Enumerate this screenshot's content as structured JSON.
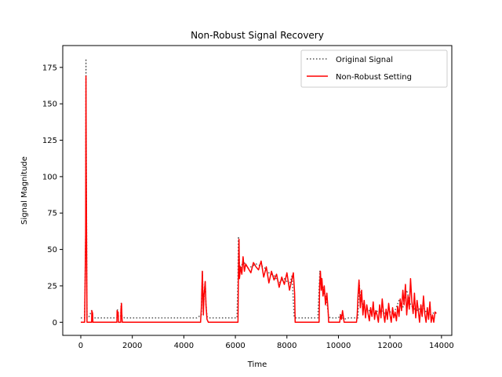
{
  "chart_data": {
    "type": "line",
    "title": "Non-Robust Signal Recovery",
    "xlabel": "Time",
    "ylabel": "Signal Magnitude",
    "xlim": [
      -700,
      14400
    ],
    "ylim": [
      -9,
      190
    ],
    "xticks": [
      0,
      2000,
      4000,
      6000,
      8000,
      10000,
      12000,
      14000
    ],
    "xtick_labels": [
      "0",
      "2000",
      "4000",
      "6000",
      "8000",
      "10000",
      "12000",
      "14000"
    ],
    "yticks": [
      0,
      25,
      50,
      75,
      100,
      125,
      150,
      175
    ],
    "ytick_labels": [
      "0",
      "25",
      "50",
      "75",
      "100",
      "125",
      "150",
      "175"
    ],
    "grid": false,
    "legend_position": "upper right",
    "series": [
      {
        "name": "Original Signal",
        "color": "#555555",
        "style": "dotted",
        "x": [
          0,
          150,
          190,
          200,
          210,
          240,
          290,
          300,
          420,
          450,
          480,
          1400,
          1420,
          1460,
          1550,
          1570,
          1600,
          1700,
          2500,
          3500,
          4500,
          4680,
          4720,
          4760,
          4800,
          4830,
          4860,
          4900,
          4960,
          5000,
          5100,
          5500,
          6000,
          6060,
          6100,
          6120,
          6160,
          6200,
          6300,
          6500,
          6800,
          7100,
          7300,
          7500,
          7700,
          7900,
          8100,
          8200,
          8280,
          8320,
          8400,
          8700,
          9000,
          9200,
          9280,
          9320,
          9380,
          9450,
          9550,
          9620,
          9680,
          9800,
          10000,
          10100,
          10200,
          10400,
          10600,
          10700,
          10760,
          10800,
          10850,
          10950,
          11050,
          11200,
          11400,
          11600,
          11800,
          12000,
          12200,
          12350,
          12500,
          12650,
          12800,
          12950,
          13100,
          13250,
          13400,
          13550,
          13650,
          13750,
          13800
        ],
        "y": [
          3,
          3,
          60,
          181,
          120,
          3,
          3,
          3,
          8,
          4,
          3,
          3,
          9,
          4,
          4,
          13,
          4,
          3,
          3,
          3,
          3,
          5,
          35,
          10,
          22,
          28,
          12,
          4,
          3,
          3,
          3,
          3,
          3,
          3,
          30,
          59,
          40,
          36,
          42,
          37,
          40,
          38,
          34,
          32,
          27,
          30,
          26,
          32,
          4,
          3,
          3,
          3,
          3,
          3,
          35,
          30,
          25,
          20,
          14,
          4,
          3,
          3,
          3,
          6,
          2,
          3,
          3,
          3,
          3,
          28,
          18,
          12,
          10,
          8,
          6,
          9,
          6,
          7,
          8,
          15,
          10,
          22,
          12,
          9,
          8,
          12,
          7,
          5,
          6,
          7,
          6
        ]
      },
      {
        "name": "Non-Robust Setting",
        "color": "#ff0000",
        "style": "solid",
        "x": [
          0,
          150,
          190,
          200,
          210,
          240,
          420,
          430,
          460,
          470,
          1400,
          1410,
          1430,
          1450,
          1460,
          1550,
          1560,
          1580,
          1600,
          1610,
          4600,
          4650,
          4680,
          4720,
          4760,
          4780,
          4800,
          4830,
          4860,
          4900,
          4950,
          5000,
          5100,
          6100,
          6120,
          6140,
          6160,
          6200,
          6250,
          6300,
          6350,
          6400,
          6500,
          6600,
          6700,
          6800,
          6900,
          7000,
          7100,
          7200,
          7300,
          7400,
          7500,
          7600,
          7700,
          7800,
          7900,
          8000,
          8100,
          8200,
          8250,
          8300,
          8320,
          8330,
          9250,
          9270,
          9300,
          9330,
          9360,
          9400,
          9450,
          9500,
          9550,
          9600,
          9620,
          9640,
          10050,
          10080,
          10120,
          10160,
          10200,
          10220,
          10700,
          10730,
          10760,
          10800,
          10850,
          10900,
          10950,
          11000,
          11050,
          11100,
          11150,
          11200,
          11250,
          11300,
          11350,
          11400,
          11450,
          11500,
          11550,
          11600,
          11650,
          11700,
          11750,
          11800,
          11850,
          11900,
          11950,
          12000,
          12050,
          12100,
          12150,
          12200,
          12250,
          12300,
          12350,
          12400,
          12450,
          12500,
          12550,
          12600,
          12650,
          12700,
          12750,
          12800,
          12850,
          12900,
          12950,
          13000,
          13050,
          13100,
          13150,
          13200,
          13250,
          13300,
          13350,
          13400,
          13450,
          13500,
          13550,
          13600,
          13650,
          13700,
          13750,
          13800
        ],
        "y": [
          0,
          0,
          60,
          169,
          110,
          0,
          0,
          8,
          6,
          0,
          0,
          8,
          5,
          7,
          0,
          0,
          9,
          13,
          3,
          0,
          0,
          0,
          10,
          35,
          5,
          18,
          22,
          28,
          12,
          2,
          0,
          0,
          0,
          0,
          35,
          57,
          30,
          38,
          33,
          45,
          35,
          40,
          37,
          34,
          41,
          38,
          36,
          42,
          31,
          38,
          27,
          35,
          29,
          33,
          24,
          31,
          26,
          34,
          22,
          30,
          34,
          20,
          0,
          0,
          0,
          25,
          35,
          22,
          30,
          18,
          25,
          12,
          20,
          8,
          0,
          0,
          0,
          5,
          2,
          8,
          3,
          0,
          0,
          5,
          18,
          29,
          10,
          22,
          5,
          15,
          3,
          12,
          6,
          1,
          10,
          4,
          14,
          2,
          8,
          5,
          0,
          12,
          3,
          16,
          6,
          0,
          9,
          2,
          13,
          5,
          0,
          10,
          3,
          7,
          1,
          11,
          4,
          16,
          8,
          22,
          12,
          26,
          5,
          18,
          9,
          30,
          14,
          6,
          20,
          3,
          15,
          8,
          0,
          12,
          4,
          18,
          6,
          0,
          10,
          2,
          14,
          0,
          5,
          0,
          7,
          6
        ]
      }
    ]
  }
}
